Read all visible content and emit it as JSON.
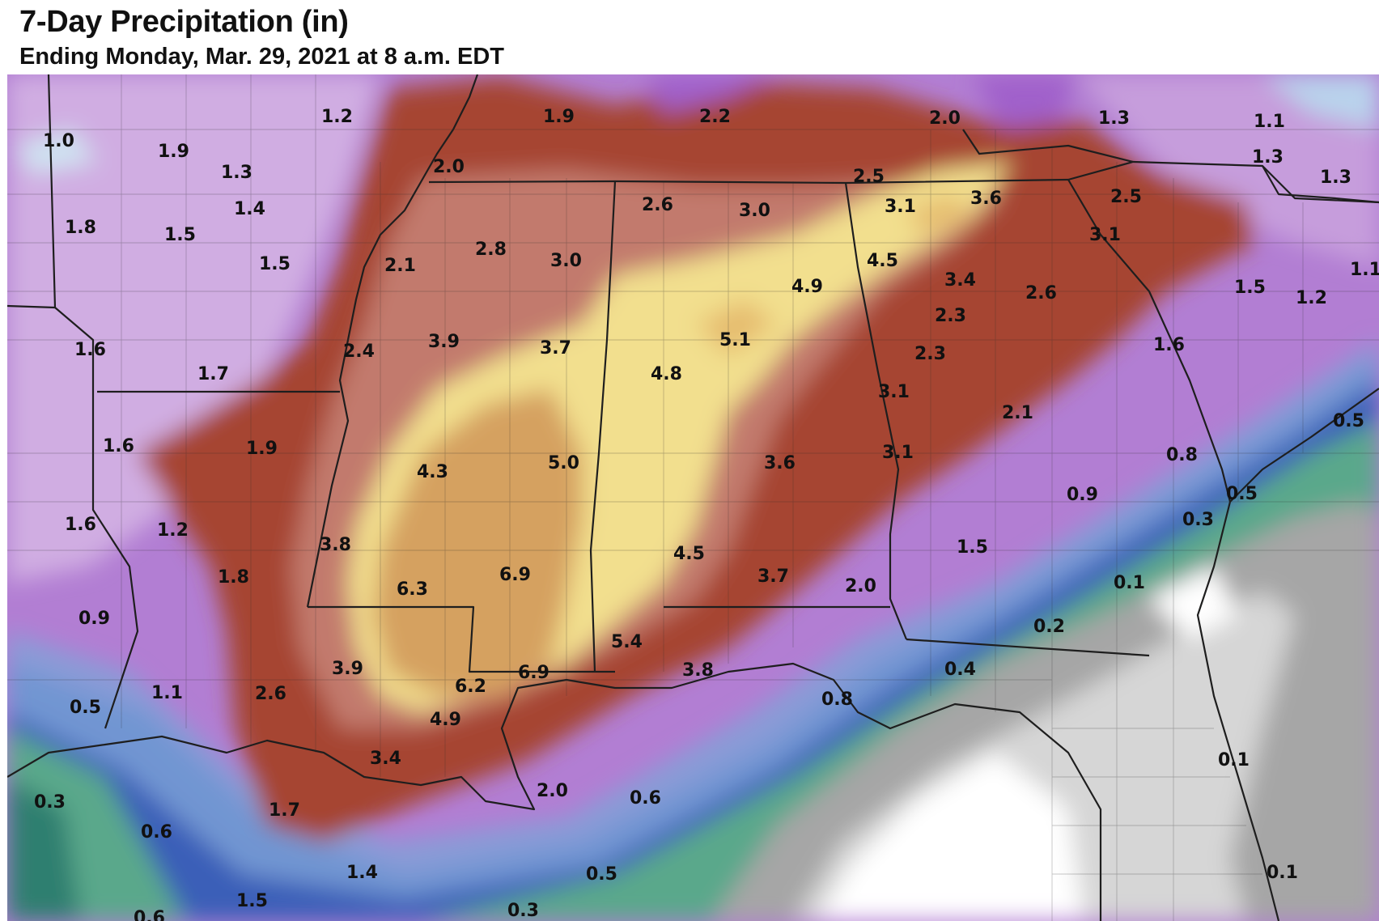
{
  "title": "7-Day Precipitation (in)",
  "subtitle": "Ending Monday, Mar. 29, 2021 at 8 a.m. EDT",
  "colors": {
    "purple_light": "#d5b6e3",
    "purple": "#b27ed3",
    "purple_dark": "#9a55c7",
    "red": "#a64531",
    "rose": "#c0786c",
    "yellow": "#f2e08f",
    "tan": "#d6a25f",
    "blue_light": "#cfe3f1",
    "blue": "#3a5fb8",
    "green": "#64aa90",
    "green_dark": "#2e7f6f",
    "gray": "#a4a4a4",
    "gray_light": "#d8d8d8",
    "white": "#ffffff",
    "boundary": "#1e1e1e"
  },
  "labels": [
    {
      "text": "1.0"
    },
    {
      "text": "1.9"
    },
    {
      "text": "1.2"
    },
    {
      "text": "1.9"
    },
    {
      "text": "2.2"
    },
    {
      "text": "2.0"
    },
    {
      "text": "1.3"
    },
    {
      "text": "1.1"
    },
    {
      "text": "1.3"
    },
    {
      "text": "1.3"
    },
    {
      "text": "1.3"
    },
    {
      "text": "1.4"
    },
    {
      "text": "1.8"
    },
    {
      "text": "1.5"
    },
    {
      "text": "1.5"
    },
    {
      "text": "2.0"
    },
    {
      "text": "2.5"
    },
    {
      "text": "2.6"
    },
    {
      "text": "3.0"
    },
    {
      "text": "3.1"
    },
    {
      "text": "3.6"
    },
    {
      "text": "2.5"
    },
    {
      "text": "3.1"
    },
    {
      "text": "2.1"
    },
    {
      "text": "2.8"
    },
    {
      "text": "3.0"
    },
    {
      "text": "4.5"
    },
    {
      "text": "4.9"
    },
    {
      "text": "3.4"
    },
    {
      "text": "2.6"
    },
    {
      "text": "1.5"
    },
    {
      "text": "1.2"
    },
    {
      "text": "1.1"
    },
    {
      "text": "1.6"
    },
    {
      "text": "1.7"
    },
    {
      "text": "2.4"
    },
    {
      "text": "3.9"
    },
    {
      "text": "3.7"
    },
    {
      "text": "5.1"
    },
    {
      "text": "4.8"
    },
    {
      "text": "2.3"
    },
    {
      "text": "2.3"
    },
    {
      "text": "3.1"
    },
    {
      "text": "1.6"
    },
    {
      "text": "2.1"
    },
    {
      "text": "0.5"
    },
    {
      "text": "1.6"
    },
    {
      "text": "1.9"
    },
    {
      "text": "4.3"
    },
    {
      "text": "5.0"
    },
    {
      "text": "3.6"
    },
    {
      "text": "3.1"
    },
    {
      "text": "0.8"
    },
    {
      "text": "0.9"
    },
    {
      "text": "0.5"
    },
    {
      "text": "1.6"
    },
    {
      "text": "1.2"
    },
    {
      "text": "0.3"
    },
    {
      "text": "3.8"
    },
    {
      "text": "4.5"
    },
    {
      "text": "1.5"
    },
    {
      "text": "1.8"
    },
    {
      "text": "6.3"
    },
    {
      "text": "6.9"
    },
    {
      "text": "3.7"
    },
    {
      "text": "2.0"
    },
    {
      "text": "0.1"
    },
    {
      "text": "0.9"
    },
    {
      "text": "0.2"
    },
    {
      "text": "5.4"
    },
    {
      "text": "3.9"
    },
    {
      "text": "3.8"
    },
    {
      "text": "6.9"
    },
    {
      "text": "6.2"
    },
    {
      "text": "0.4"
    },
    {
      "text": "1.1"
    },
    {
      "text": "2.6"
    },
    {
      "text": "0.8"
    },
    {
      "text": "0.5"
    },
    {
      "text": "4.9"
    },
    {
      "text": "3.4"
    },
    {
      "text": "0.1"
    },
    {
      "text": "2.0"
    },
    {
      "text": "0.6"
    },
    {
      "text": "0.3"
    },
    {
      "text": "1.7"
    },
    {
      "text": "0.6"
    },
    {
      "text": "1.4"
    },
    {
      "text": "0.5"
    },
    {
      "text": "0.1"
    },
    {
      "text": "1.5"
    },
    {
      "text": "0.6"
    },
    {
      "text": "0.3"
    }
  ]
}
